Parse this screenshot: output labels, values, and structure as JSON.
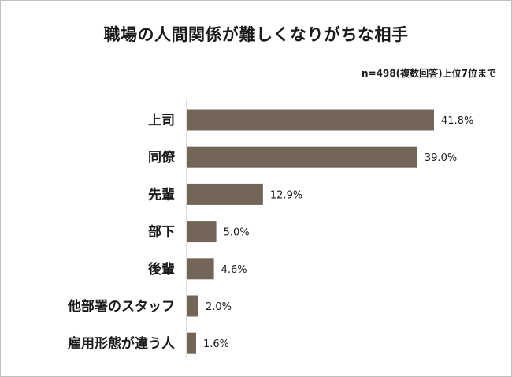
{
  "chart_data": {
    "type": "bar",
    "orientation": "horizontal",
    "title": "職場の人間関係が難しくなりがちな相手",
    "subtitle": "n=498(複数回答)上位7位まで",
    "categories": [
      "上司",
      "同僚",
      "先輩",
      "部下",
      "後輩",
      "他部署のスタッフ",
      "雇用形態が違う人"
    ],
    "values": [
      41.8,
      39.0,
      12.9,
      5.0,
      4.6,
      2.0,
      1.6
    ],
    "value_labels": [
      "41.8%",
      "39.0%",
      "12.9%",
      "5.0%",
      "4.6%",
      "2.0%",
      "1.6%"
    ],
    "xlim": [
      0,
      45
    ],
    "grid": false,
    "legend": "none",
    "colors": {
      "bar": "#736659",
      "axis": "#bfbfbf",
      "text": "#1a1a1a"
    }
  }
}
